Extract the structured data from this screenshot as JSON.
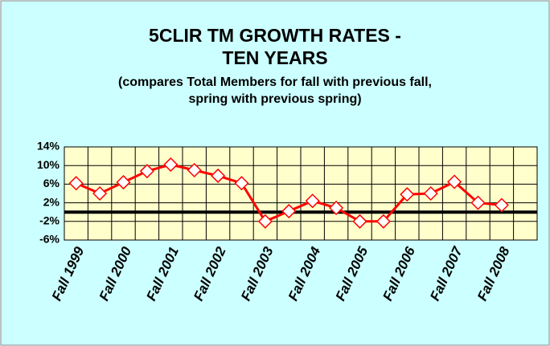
{
  "chart_data": {
    "type": "line",
    "title": [
      "5CLIR TM GROWTH RATES -",
      "TEN YEARS"
    ],
    "subtitle": [
      "(compares Total Members for fall with previous fall,",
      "spring with previous spring)"
    ],
    "categories": [
      "Fall 1999",
      null,
      "Fall 2000",
      null,
      "Fall 2001",
      null,
      "Fall 2002",
      null,
      "Fall 2003",
      null,
      "Fall 2004",
      null,
      "Fall 2005",
      null,
      "Fall 2006",
      null,
      "Fall 2007",
      null,
      "Fall 2008"
    ],
    "series": [
      {
        "name": "Growth rate",
        "color": "#ff0000",
        "values": [
          6.2,
          4.0,
          6.4,
          8.8,
          10.2,
          9.0,
          7.8,
          6.2,
          -2.0,
          0.2,
          2.4,
          0.9,
          -2.0,
          -2.0,
          3.8,
          4.0,
          6.5,
          2.0,
          1.5
        ]
      }
    ],
    "ylim": [
      -6,
      14
    ],
    "yticks": [
      {
        "value": -6,
        "label": "-6%"
      },
      {
        "value": -2,
        "label": "-2%"
      },
      {
        "value": 2,
        "label": "2%"
      },
      {
        "value": 6,
        "label": "6%"
      },
      {
        "value": 10,
        "label": "10%"
      },
      {
        "value": 14,
        "label": "14%"
      }
    ],
    "grid": true
  }
}
